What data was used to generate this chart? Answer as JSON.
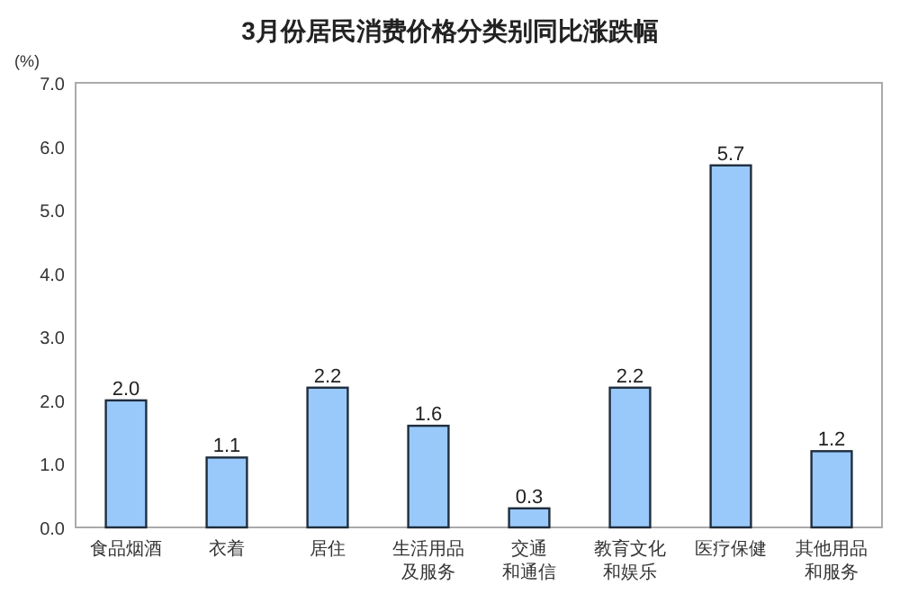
{
  "chart_data": {
    "type": "bar",
    "title": "3月份居民消费价格分类别同比涨跌幅",
    "ylabel": "(%)",
    "categories": [
      "食品烟酒",
      "衣着",
      "居住",
      "生活用品及服务",
      "交通和通信",
      "教育文化和娱乐",
      "医疗保健",
      "其他用品和服务"
    ],
    "values": [
      2.0,
      1.1,
      2.2,
      1.6,
      0.3,
      2.2,
      5.7,
      1.2
    ],
    "color": "#99c9fb",
    "ylim": [
      0,
      7
    ],
    "yticks": [
      {
        "value": 0,
        "label": "0.0"
      },
      {
        "value": 1,
        "label": "1.0"
      },
      {
        "value": 2,
        "label": "2.0"
      },
      {
        "value": 3,
        "label": "3.0"
      },
      {
        "value": 4,
        "label": "4.0"
      },
      {
        "value": 5,
        "label": "5.0"
      },
      {
        "value": 6,
        "label": "6.0"
      },
      {
        "value": 7,
        "label": "7.0"
      }
    ],
    "value_labels": [
      "2.0",
      "1.1",
      "2.2",
      "1.6",
      "0.3",
      "2.2",
      "5.7",
      "1.2"
    ],
    "grid": false
  }
}
